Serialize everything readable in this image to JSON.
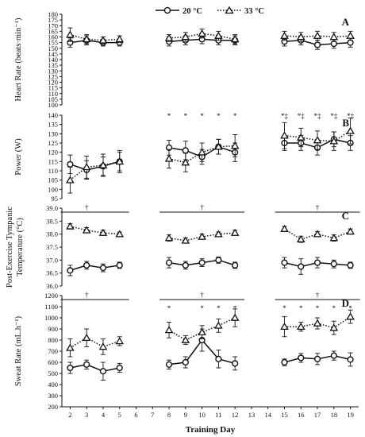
{
  "colors": {
    "series20": "#111111",
    "series33": "#111111",
    "marker_fill": "#ffffff",
    "marker33_fill": "#111111"
  },
  "chart_data": {
    "type": "line",
    "xlabel": "Training Day",
    "x_ticks": [
      2,
      3,
      4,
      5,
      6,
      7,
      8,
      9,
      10,
      11,
      12,
      13,
      14,
      15,
      16,
      17,
      18,
      19
    ],
    "xlim": [
      1.5,
      19.5
    ],
    "legend": {
      "placement": "top-center",
      "entries": [
        "20 °C",
        "33 °C"
      ]
    },
    "panels": [
      {
        "letter": "A",
        "ylabel": "Heart Rate (beats·min⁻¹)",
        "ylim": [
          100,
          180
        ],
        "yticks": [
          100,
          105,
          110,
          115,
          120,
          125,
          130,
          135,
          140,
          145,
          150,
          155,
          160,
          165,
          170,
          175,
          180
        ],
        "series": [
          {
            "name": "20 °C",
            "marker": "circle",
            "dash": "solid",
            "segments": [
              {
                "x": [
                  2,
                  3,
                  4,
                  5
                ],
                "y": [
                  155,
                  157,
                  155,
                  155
                ],
                "err": [
                  4,
                  4,
                  3,
                  3
                ]
              },
              {
                "x": [
                  8,
                  9,
                  10,
                  11,
                  12
                ],
                "y": [
                  156,
                  157,
                  158,
                  157,
                  157
                ],
                "err": [
                  4,
                  4,
                  4,
                  4,
                  4
                ]
              },
              {
                "x": [
                  15,
                  16,
                  17,
                  18,
                  19
                ],
                "y": [
                  156,
                  157,
                  153,
                  154,
                  155
                ],
                "err": [
                  4,
                  4,
                  4,
                  4,
                  4
                ]
              }
            ]
          },
          {
            "name": "33 °C",
            "marker": "triangle",
            "dash": "dotted",
            "segments": [
              {
                "x": [
                  2,
                  3,
                  4,
                  5
                ],
                "y": [
                  162,
                  158,
                  157,
                  158
                ],
                "err": [
                  6,
                  4,
                  3,
                  3
                ]
              },
              {
                "x": [
                  8,
                  9,
                  10,
                  11,
                  12
                ],
                "y": [
                  159,
                  160,
                  163,
                  161,
                  158
                ],
                "err": [
                  3,
                  4,
                  4,
                  4,
                  4
                ]
              },
              {
                "x": [
                  15,
                  16,
                  17,
                  18,
                  19
                ],
                "y": [
                  161,
                  160,
                  161,
                  160,
                  161
                ],
                "err": [
                  4,
                  4,
                  4,
                  4,
                  4
                ]
              }
            ]
          }
        ],
        "annotations": []
      },
      {
        "letter": "B",
        "ylabel": "Power (W)",
        "ylim": [
          95,
          140
        ],
        "yticks": [
          95,
          100,
          105,
          110,
          115,
          120,
          125,
          130,
          135,
          140
        ],
        "series": [
          {
            "name": "20 °C",
            "marker": "circle",
            "dash": "solid",
            "segments": [
              {
                "x": [
                  2,
                  3,
                  4,
                  5
                ],
                "y": [
                  113.5,
                  110.5,
                  112.5,
                  115
                ],
                "err": [
                  5,
                  5,
                  5,
                  5
                ]
              },
              {
                "x": [
                  8,
                  9,
                  10,
                  11,
                  12
                ],
                "y": [
                  122.5,
                  121,
                  117.5,
                  123,
                  120
                ],
                "err": [
                  4,
                  5,
                  4,
                  4,
                  5
                ]
              },
              {
                "x": [
                  15,
                  16,
                  17,
                  18,
                  19
                ],
                "y": [
                  125,
                  125,
                  122.5,
                  127,
                  125
                ],
                "err": [
                  4,
                  4,
                  4,
                  4,
                  4
                ]
              }
            ]
          },
          {
            "name": "33 °C",
            "marker": "triangle",
            "dash": "dotted",
            "segments": [
              {
                "x": [
                  2,
                  3,
                  4,
                  5
                ],
                "y": [
                  105,
                  112,
                  113,
                  115
                ],
                "err": [
                  7,
                  6,
                  6,
                  6
                ]
              },
              {
                "x": [
                  8,
                  9,
                  10,
                  11,
                  12
                ],
                "y": [
                  116.5,
                  114.5,
                  120,
                  123,
                  123.5
                ],
                "err": [
                  5,
                  5,
                  5,
                  4,
                  6
                ]
              },
              {
                "x": [
                  15,
                  16,
                  17,
                  18,
                  19
                ],
                "y": [
                  129,
                  128,
                  126.5,
                  126,
                  131.5
                ],
                "err": [
                  7,
                  5,
                  5,
                  5,
                  7
                ]
              }
            ]
          }
        ],
        "annotations": [
          {
            "x": 8,
            "text": "*"
          },
          {
            "x": 9,
            "text": "*"
          },
          {
            "x": 10,
            "text": "*"
          },
          {
            "x": 11,
            "text": "*"
          },
          {
            "x": 12,
            "text": "*"
          },
          {
            "x": 15,
            "text": "*‡"
          },
          {
            "x": 16,
            "text": "*‡"
          },
          {
            "x": 17,
            "text": "*‡"
          },
          {
            "x": 18,
            "text": "*‡"
          },
          {
            "x": 19,
            "text": "*‡"
          }
        ]
      },
      {
        "letter": "C",
        "ylabel": "Post-Exercise Tympanic Temperature (°C)",
        "ylim": [
          36.0,
          39.0
        ],
        "yticks": [
          36.0,
          36.5,
          37.0,
          37.5,
          38.0,
          38.5,
          39.0
        ],
        "tick_format": "fixed1",
        "series": [
          {
            "name": "20 °C",
            "marker": "circle",
            "dash": "solid",
            "segments": [
              {
                "x": [
                  2,
                  3,
                  4,
                  5
                ],
                "y": [
                  36.6,
                  36.8,
                  36.7,
                  36.8
                ],
                "err": [
                  0.2,
                  0.15,
                  0.15,
                  0.12
                ]
              },
              {
                "x": [
                  8,
                  9,
                  10,
                  11,
                  12
                ],
                "y": [
                  36.9,
                  36.8,
                  36.9,
                  37.0,
                  36.8
                ],
                "err": [
                  0.2,
                  0.15,
                  0.15,
                  0.12,
                  0.12
                ]
              },
              {
                "x": [
                  15,
                  16,
                  17,
                  18,
                  19
                ],
                "y": [
                  36.9,
                  36.75,
                  36.9,
                  36.85,
                  36.8
                ],
                "err": [
                  0.2,
                  0.3,
                  0.2,
                  0.15,
                  0.12
                ]
              }
            ]
          },
          {
            "name": "33 °C",
            "marker": "triangle",
            "dash": "dotted",
            "segments": [
              {
                "x": [
                  2,
                  3,
                  4,
                  5
                ],
                "y": [
                  38.3,
                  38.15,
                  38.05,
                  38.0
                ],
                "err": [
                  0.1,
                  0.1,
                  0.1,
                  0.08
                ]
              },
              {
                "x": [
                  8,
                  9,
                  10,
                  11,
                  12
                ],
                "y": [
                  37.85,
                  37.75,
                  37.9,
                  38.0,
                  38.05
                ],
                "err": [
                  0.12,
                  0.1,
                  0.1,
                  0.08,
                  0.1
                ]
              },
              {
                "x": [
                  15,
                  16,
                  17,
                  18,
                  19
                ],
                "y": [
                  38.2,
                  37.8,
                  38.0,
                  37.85,
                  38.1
                ],
                "err": [
                  0.1,
                  0.12,
                  0.1,
                  0.12,
                  0.1
                ]
              }
            ]
          }
        ],
        "annotations": [
          {
            "x": 3,
            "text": "†"
          },
          {
            "x": 10,
            "text": "†"
          },
          {
            "x": 17,
            "text": "†"
          }
        ],
        "brackets": [
          [
            2,
            5
          ],
          [
            8,
            12
          ],
          [
            15,
            19
          ]
        ]
      },
      {
        "letter": "D",
        "ylabel": "Sweat Rate (mL.h⁻¹)",
        "ylim": [
          200,
          1200
        ],
        "yticks": [
          200,
          300,
          400,
          500,
          600,
          700,
          800,
          900,
          1000,
          1100,
          1200
        ],
        "series": [
          {
            "name": "20 °C",
            "marker": "circle",
            "dash": "solid",
            "segments": [
              {
                "x": [
                  2,
                  3,
                  4,
                  5
                ],
                "y": [
                  550,
                  580,
                  520,
                  550
                ],
                "err": [
                  50,
                  40,
                  80,
                  40
                ]
              },
              {
                "x": [
                  8,
                  9,
                  10,
                  11,
                  12
                ],
                "y": [
                  580,
                  600,
                  800,
                  630,
                  590
                ],
                "err": [
                  40,
                  50,
                  100,
                  80,
                  60
                ]
              },
              {
                "x": [
                  15,
                  16,
                  17,
                  18,
                  19
                ],
                "y": [
                  600,
                  640,
                  630,
                  660,
                  625
                ],
                "err": [
                  30,
                  40,
                  50,
                  40,
                  60
                ]
              }
            ]
          },
          {
            "name": "33 °C",
            "marker": "triangle",
            "dash": "dotted",
            "segments": [
              {
                "x": [
                  2,
                  3,
                  4,
                  5
                ],
                "y": [
                  730,
                  820,
                  740,
                  790
                ],
                "err": [
                  80,
                  80,
                  70,
                  40
                ]
              },
              {
                "x": [
                  8,
                  9,
                  10,
                  11,
                  12
                ],
                "y": [
                  890,
                  800,
                  870,
                  930,
                  1000
                ],
                "err": [
                  70,
                  40,
                  60,
                  60,
                  80
                ]
              },
              {
                "x": [
                  15,
                  16,
                  17,
                  18,
                  19
                ],
                "y": [
                  920,
                  920,
                  950,
                  910,
                  1010
                ],
                "err": [
                  90,
                  40,
                  50,
                  60,
                  60
                ]
              }
            ]
          }
        ],
        "annotations": [
          {
            "x": 3,
            "text": "†"
          },
          {
            "x": 10,
            "text": "†"
          },
          {
            "x": 17,
            "text": "†"
          },
          {
            "x": 8,
            "text": "*"
          },
          {
            "x": 10,
            "text": "*"
          },
          {
            "x": 11,
            "text": "*"
          },
          {
            "x": 12,
            "text": "*"
          },
          {
            "x": 15,
            "text": "*"
          },
          {
            "x": 16,
            "text": "*"
          },
          {
            "x": 17,
            "text": "*"
          },
          {
            "x": 18,
            "text": "*"
          },
          {
            "x": 19,
            "text": "*"
          }
        ],
        "brackets": [
          [
            2,
            5
          ],
          [
            8,
            12
          ],
          [
            15,
            19
          ]
        ]
      }
    ]
  }
}
